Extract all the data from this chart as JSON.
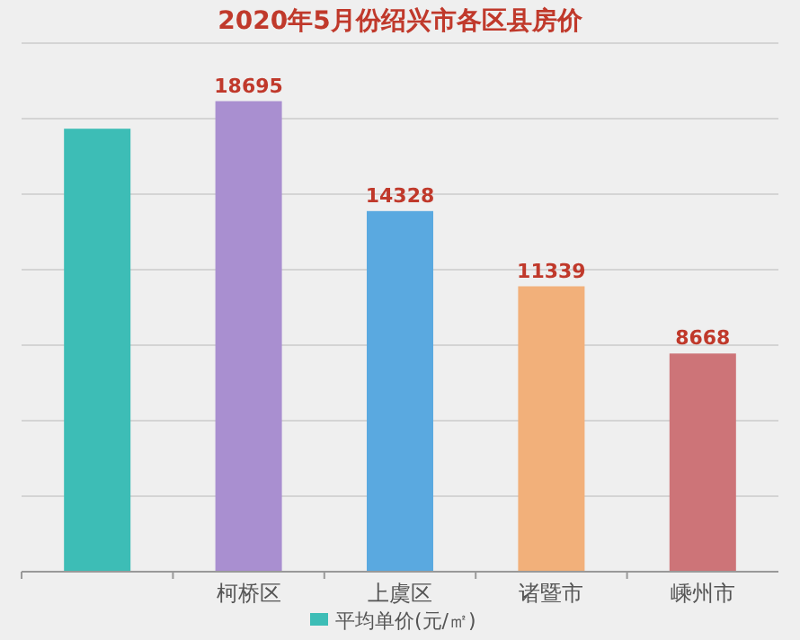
{
  "chart_data": {
    "type": "bar",
    "title": "2020年5月份绍兴市各区县房价",
    "categories": [
      null,
      "柯桥区",
      "上虞区",
      "诸暨市",
      "嵊州市"
    ],
    "series": [
      {
        "name": "平均单价(元/㎡)",
        "color": "#3dbdb6",
        "colors": [
          "#3dbdb6",
          "#a98fd0",
          "#5aa9e0",
          "#f2b07a",
          "#cd7478"
        ],
        "values": [
          17600,
          18695,
          14328,
          11339,
          8668
        ],
        "value_labels": [
          null,
          "18695",
          "14328",
          "11339",
          "8668"
        ]
      }
    ],
    "ylim": [
      0,
      21000
    ],
    "yticks": [
      {
        "value": 0,
        "label": null
      },
      {
        "value": 3000,
        "label": null
      },
      {
        "value": 6000,
        "label": null
      },
      {
        "value": 9000,
        "label": null
      },
      {
        "value": 12000,
        "label": null
      },
      {
        "value": 15000,
        "label": null
      },
      {
        "value": 18000,
        "label": null
      },
      {
        "value": 21000,
        "label": null
      }
    ],
    "grid": "y",
    "legend": "bottom"
  }
}
